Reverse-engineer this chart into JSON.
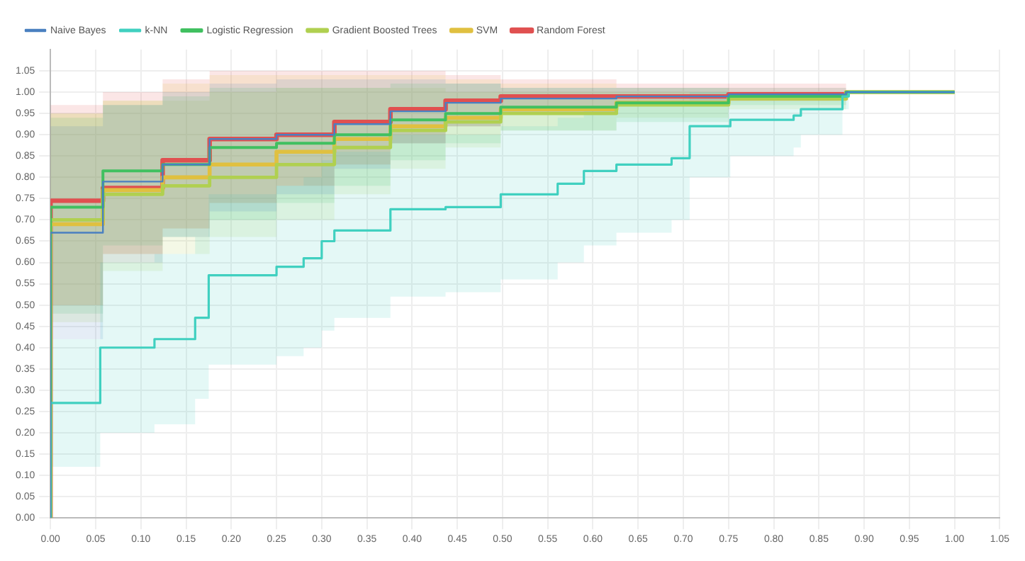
{
  "chart_data": {
    "type": "step",
    "legend": "top left",
    "grid": true,
    "marker": "none",
    "line_style": "solid",
    "xlim": [
      0,
      1.05
    ],
    "ylim": [
      0,
      1.1
    ],
    "xticks": [
      {
        "value": 0,
        "label": "0.00"
      },
      {
        "value": 0.05,
        "label": "0.05"
      },
      {
        "value": 0.1,
        "label": "0.10"
      },
      {
        "value": 0.15,
        "label": "0.15"
      },
      {
        "value": 0.2,
        "label": "0.20"
      },
      {
        "value": 0.25,
        "label": "0.25"
      },
      {
        "value": 0.3,
        "label": "0.30"
      },
      {
        "value": 0.35,
        "label": "0.35"
      },
      {
        "value": 0.4,
        "label": "0.40"
      },
      {
        "value": 0.45,
        "label": "0.45"
      },
      {
        "value": 0.5,
        "label": "0.50"
      },
      {
        "value": 0.55,
        "label": "0.55"
      },
      {
        "value": 0.6,
        "label": "0.60"
      },
      {
        "value": 0.65,
        "label": "0.65"
      },
      {
        "value": 0.7,
        "label": "0.70"
      },
      {
        "value": 0.75,
        "label": "0.75"
      },
      {
        "value": 0.8,
        "label": "0.80"
      },
      {
        "value": 0.85,
        "label": "0.85"
      },
      {
        "value": 0.9,
        "label": "0.90"
      },
      {
        "value": 0.95,
        "label": "0.95"
      },
      {
        "value": 1,
        "label": "1.00"
      },
      {
        "value": 1.05,
        "label": "1.05"
      }
    ],
    "yticks": [
      {
        "value": 0,
        "label": "0.00"
      },
      {
        "value": 0.05,
        "label": "0.05"
      },
      {
        "value": 0.1,
        "label": "0.10"
      },
      {
        "value": 0.15,
        "label": "0.15"
      },
      {
        "value": 0.2,
        "label": "0.20"
      },
      {
        "value": 0.25,
        "label": "0.25"
      },
      {
        "value": 0.3,
        "label": "0.30"
      },
      {
        "value": 0.35,
        "label": "0.35"
      },
      {
        "value": 0.4,
        "label": "0.40"
      },
      {
        "value": 0.45,
        "label": "0.45"
      },
      {
        "value": 0.5,
        "label": "0.50"
      },
      {
        "value": 0.55,
        "label": "0.55"
      },
      {
        "value": 0.6,
        "label": "0.60"
      },
      {
        "value": 0.65,
        "label": "0.65"
      },
      {
        "value": 0.7,
        "label": "0.70"
      },
      {
        "value": 0.75,
        "label": "0.75"
      },
      {
        "value": 0.8,
        "label": "0.80"
      },
      {
        "value": 0.85,
        "label": "0.85"
      },
      {
        "value": 0.9,
        "label": "0.90"
      },
      {
        "value": 0.95,
        "label": "0.95"
      },
      {
        "value": 1,
        "label": "1.00"
      },
      {
        "value": 1.05,
        "label": "1.05"
      }
    ],
    "series": [
      {
        "name": "Naive Bayes",
        "color": "#4a80c0",
        "x": [
          0,
          0,
          0.058,
          0.124,
          0.176,
          0.25,
          0.314,
          0.376,
          0.437,
          0.498,
          0.626,
          0.75,
          0.88,
          0.937,
          1.0
        ],
        "values": [
          0,
          0.49,
          0.67,
          0.79,
          0.83,
          0.89,
          0.9,
          0.925,
          0.955,
          0.975,
          0.985,
          0.99,
          0.995,
          1.0,
          1.0
        ],
        "lower": [
          0,
          0.2,
          0.42,
          0.6,
          0.66,
          0.72,
          0.76,
          0.82,
          0.88,
          0.92,
          0.95,
          0.97,
          0.98,
          1.0,
          1.0
        ],
        "upper": [
          0,
          0.78,
          0.92,
          0.97,
          1.0,
          1.02,
          1.03,
          1.03,
          1.03,
          1.02,
          1.01,
          1.01,
          1.01,
          1.0,
          1.0
        ]
      },
      {
        "name": "k-NN",
        "color": "#40d0c0",
        "x": [
          0,
          0,
          0.055,
          0.115,
          0.16,
          0.175,
          0.25,
          0.28,
          0.3,
          0.314,
          0.376,
          0.437,
          0.498,
          0.561,
          0.59,
          0.626,
          0.687,
          0.707,
          0.752,
          0.822,
          0.83,
          0.876,
          0.883,
          0.937,
          1.0
        ],
        "values": [
          0,
          0.19,
          0.27,
          0.4,
          0.42,
          0.47,
          0.57,
          0.59,
          0.61,
          0.65,
          0.675,
          0.725,
          0.73,
          0.76,
          0.785,
          0.815,
          0.83,
          0.845,
          0.92,
          0.935,
          0.945,
          0.96,
          0.99,
          1.0,
          1.0
        ],
        "lower": [
          0,
          0.09,
          0.12,
          0.2,
          0.22,
          0.28,
          0.36,
          0.38,
          0.4,
          0.44,
          0.47,
          0.52,
          0.53,
          0.56,
          0.6,
          0.64,
          0.67,
          0.7,
          0.8,
          0.85,
          0.87,
          0.9,
          0.96,
          1.0,
          1.0
        ],
        "upper": [
          0,
          0.3,
          0.42,
          0.6,
          0.62,
          0.66,
          0.76,
          0.78,
          0.8,
          0.84,
          0.86,
          0.9,
          0.9,
          0.92,
          0.94,
          0.96,
          0.97,
          0.98,
          1.0,
          1.0,
          1.0,
          1.0,
          1.0,
          1.0,
          1.0
        ]
      },
      {
        "name": "Logistic Regression",
        "color": "#40c060",
        "x": [
          0,
          0,
          0.058,
          0.124,
          0.176,
          0.25,
          0.314,
          0.376,
          0.437,
          0.498,
          0.626,
          0.75,
          0.88,
          0.937,
          1.0
        ],
        "values": [
          0,
          0.57,
          0.73,
          0.815,
          0.83,
          0.87,
          0.88,
          0.9,
          0.935,
          0.95,
          0.965,
          0.975,
          0.99,
          1.0,
          1.0
        ],
        "lower": [
          0,
          0.28,
          0.48,
          0.64,
          0.66,
          0.7,
          0.74,
          0.78,
          0.84,
          0.88,
          0.91,
          0.93,
          0.97,
          1.0,
          1.0
        ],
        "upper": [
          0,
          0.86,
          0.94,
          0.97,
          0.99,
          1.01,
          1.01,
          1.01,
          1.02,
          1.02,
          1.01,
          1.01,
          1.0,
          1.0,
          1.0
        ]
      },
      {
        "name": "Gradient Boosted Trees",
        "color": "#b0d050",
        "x": [
          0,
          0,
          0.058,
          0.124,
          0.176,
          0.25,
          0.314,
          0.376,
          0.437,
          0.498,
          0.626,
          0.75,
          0.88,
          0.937,
          1.0
        ],
        "values": [
          0,
          0.59,
          0.7,
          0.76,
          0.78,
          0.8,
          0.83,
          0.87,
          0.91,
          0.93,
          0.95,
          0.97,
          0.985,
          1.0,
          1.0
        ],
        "lower": [
          0,
          0.3,
          0.46,
          0.58,
          0.62,
          0.66,
          0.7,
          0.76,
          0.82,
          0.87,
          0.91,
          0.94,
          0.96,
          1.0,
          1.0
        ],
        "upper": [
          0,
          0.85,
          0.95,
          0.98,
          0.98,
          1.0,
          1.01,
          1.01,
          1.01,
          1.0,
          1.0,
          1.0,
          1.0,
          1.0,
          1.0
        ]
      },
      {
        "name": "SVM",
        "color": "#e0c040",
        "x": [
          0,
          0,
          0.058,
          0.124,
          0.176,
          0.25,
          0.314,
          0.376,
          0.437,
          0.498,
          0.626,
          0.75,
          0.88,
          0.937,
          1.0
        ],
        "values": [
          0,
          0.545,
          0.69,
          0.77,
          0.8,
          0.83,
          0.86,
          0.89,
          0.92,
          0.94,
          0.96,
          0.975,
          0.985,
          1.0,
          1.0
        ],
        "lower": [
          0,
          0.26,
          0.5,
          0.62,
          0.68,
          0.74,
          0.78,
          0.83,
          0.88,
          0.92,
          0.95,
          0.97,
          0.98,
          1.0,
          1.0
        ],
        "upper": [
          0,
          0.82,
          0.95,
          0.98,
          1.02,
          1.04,
          1.04,
          1.04,
          1.04,
          1.03,
          1.02,
          1.01,
          1.01,
          1.0,
          1.0
        ]
      },
      {
        "name": "Random Forest",
        "color": "#e05050",
        "x": [
          0,
          0,
          0.058,
          0.124,
          0.176,
          0.25,
          0.314,
          0.376,
          0.437,
          0.498,
          0.626,
          0.75,
          0.88,
          0.937,
          1.0
        ],
        "values": [
          0,
          0.59,
          0.745,
          0.775,
          0.84,
          0.89,
          0.9,
          0.93,
          0.96,
          0.98,
          0.99,
          0.99,
          0.995,
          null,
          null
        ],
        "lower": [
          0,
          0.3,
          0.5,
          0.62,
          0.68,
          0.74,
          0.78,
          0.83,
          0.88,
          0.92,
          0.95,
          0.97,
          0.98,
          1.0,
          1.0
        ],
        "upper": [
          0,
          0.88,
          0.97,
          1.0,
          1.03,
          1.05,
          1.05,
          1.05,
          1.05,
          1.04,
          1.03,
          1.02,
          1.02,
          1.0,
          1.0
        ]
      }
    ]
  }
}
